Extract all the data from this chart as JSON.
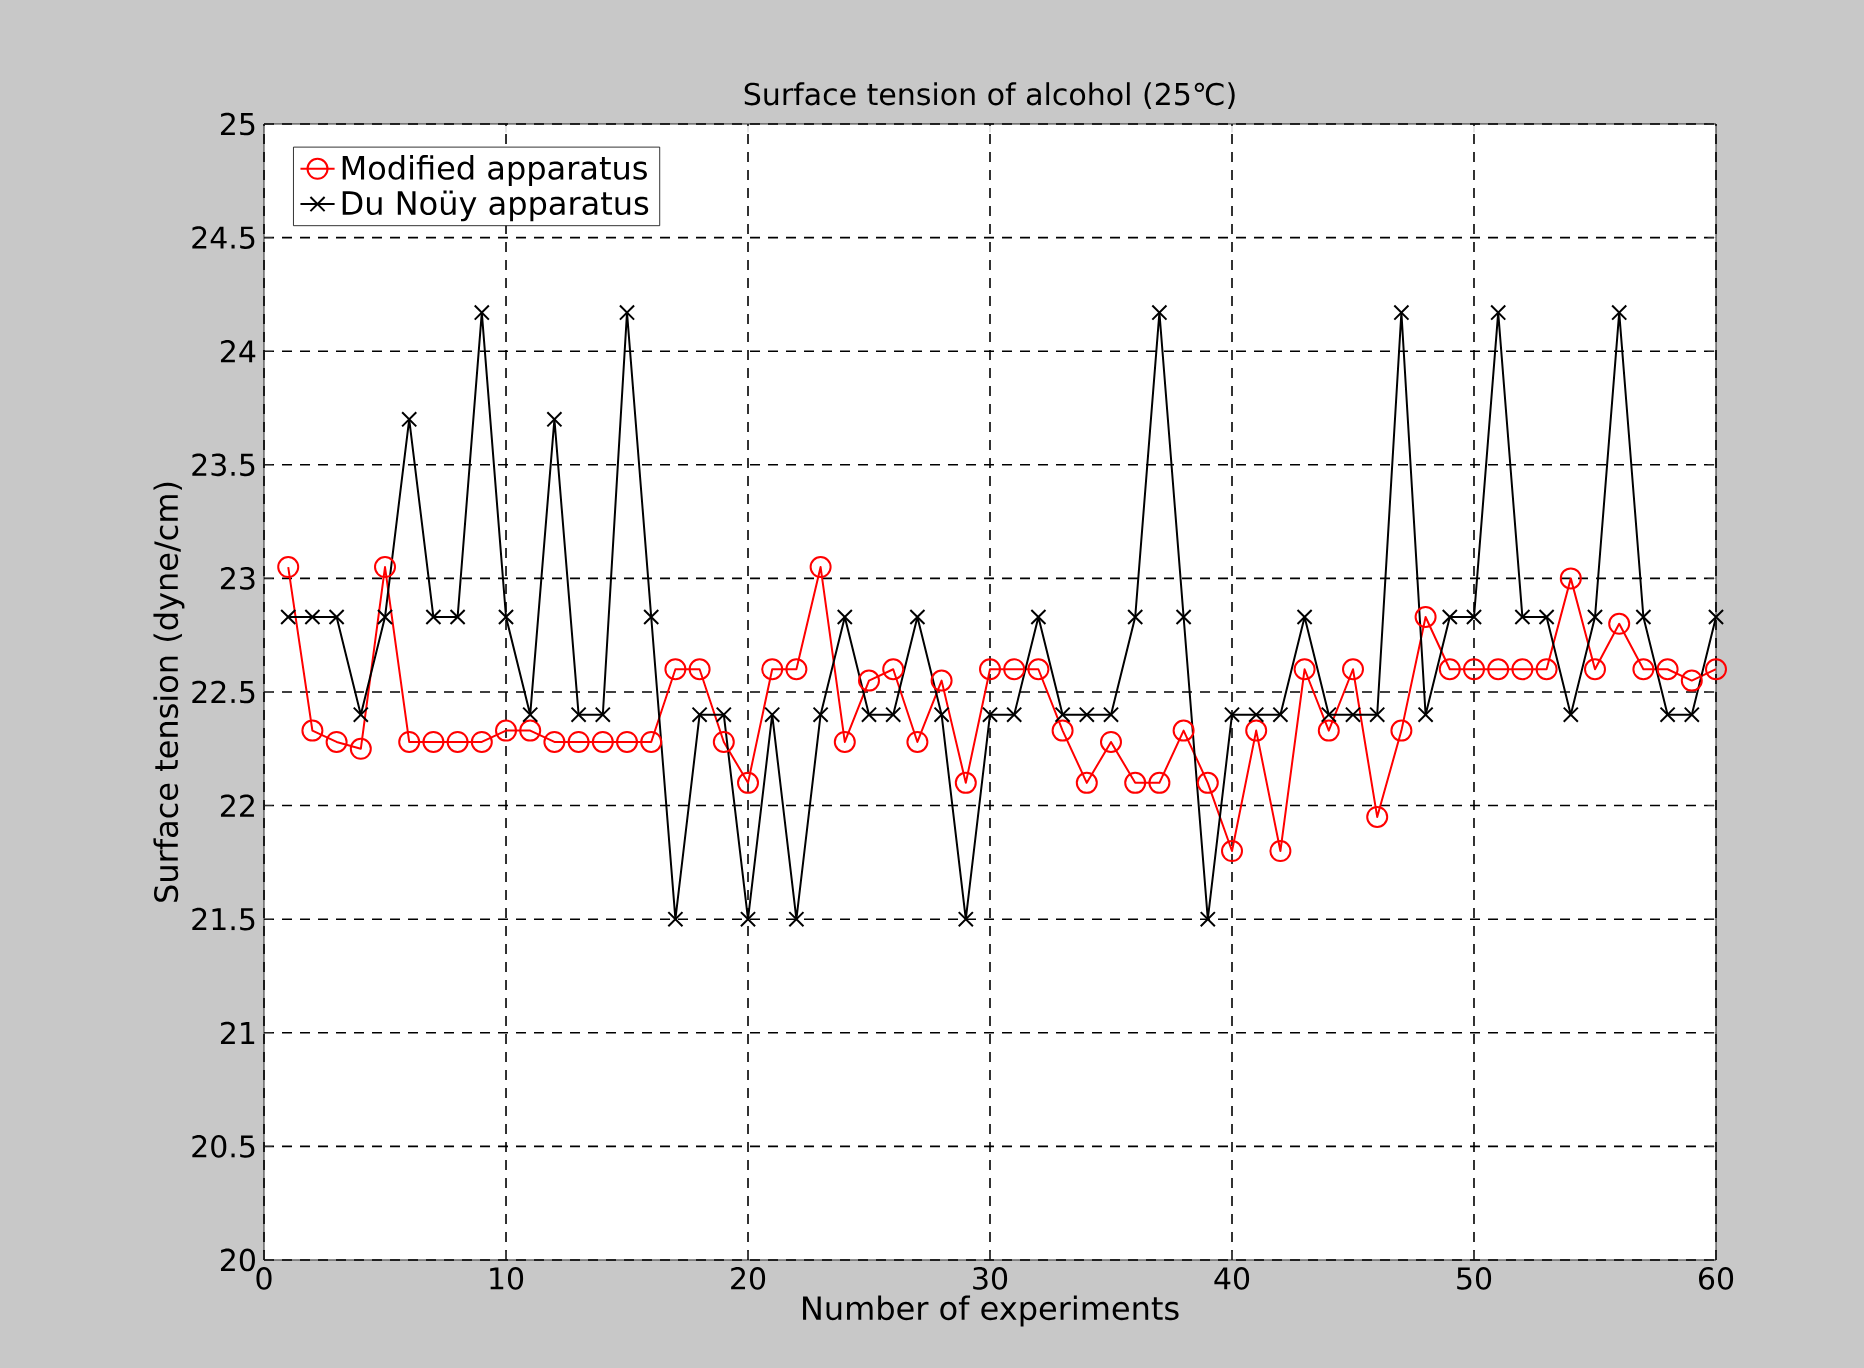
{
  "chart_data": {
    "type": "line",
    "title": "Surface tension of alcohol (25℃)",
    "xlabel": "Number of experiments",
    "ylabel": "Surface tension (dyne/cm)",
    "x": [
      1,
      2,
      3,
      4,
      5,
      6,
      7,
      8,
      9,
      10,
      11,
      12,
      13,
      14,
      15,
      16,
      17,
      18,
      19,
      20,
      21,
      22,
      23,
      24,
      25,
      26,
      27,
      28,
      29,
      30,
      31,
      32,
      33,
      34,
      35,
      36,
      37,
      38,
      39,
      40,
      41,
      42,
      43,
      44,
      45,
      46,
      47,
      48,
      49,
      50,
      51,
      52,
      53,
      54,
      55,
      56,
      57,
      58,
      59,
      60
    ],
    "series": [
      {
        "name": "Modified apparatus",
        "color": "#ff0000",
        "marker": "circle",
        "values": [
          23.05,
          22.33,
          22.28,
          22.25,
          23.05,
          22.28,
          22.28,
          22.28,
          22.28,
          22.33,
          22.33,
          22.28,
          22.28,
          22.28,
          22.28,
          22.28,
          22.6,
          22.6,
          22.28,
          22.1,
          22.6,
          22.6,
          23.05,
          22.28,
          22.55,
          22.6,
          22.28,
          22.55,
          22.1,
          22.6,
          22.6,
          22.6,
          22.33,
          22.1,
          22.28,
          22.1,
          22.1,
          22.33,
          22.1,
          21.8,
          22.33,
          21.8,
          22.6,
          22.33,
          22.6,
          21.95,
          22.33,
          22.83,
          22.6,
          22.6,
          22.6,
          22.6,
          22.6,
          23.0,
          22.6,
          22.8,
          22.6,
          22.6,
          22.55,
          22.6
        ]
      },
      {
        "name": "Du Noüy apparatus",
        "color": "#000000",
        "marker": "cross",
        "values": [
          22.83,
          22.83,
          22.83,
          22.4,
          22.83,
          23.7,
          22.83,
          22.83,
          24.17,
          22.83,
          22.4,
          23.7,
          22.4,
          22.4,
          24.17,
          22.83,
          21.5,
          22.4,
          22.4,
          21.5,
          22.4,
          21.5,
          22.4,
          22.83,
          22.4,
          22.4,
          22.83,
          22.4,
          21.5,
          22.4,
          22.4,
          22.83,
          22.4,
          22.4,
          22.4,
          22.83,
          24.17,
          22.83,
          21.5,
          22.4,
          22.4,
          22.4,
          22.83,
          22.4,
          22.4,
          22.4,
          24.17,
          22.4,
          22.83,
          22.83,
          24.17,
          22.83,
          22.83,
          22.4,
          22.83,
          24.17,
          22.83,
          22.4,
          22.4,
          22.83
        ]
      }
    ],
    "xlim": [
      0,
      60
    ],
    "xticks": [
      0,
      10,
      20,
      30,
      40,
      50,
      60
    ],
    "ylim": [
      20,
      25
    ],
    "yticks": [
      20,
      20.5,
      21,
      21.5,
      22,
      22.5,
      23,
      23.5,
      24,
      24.5,
      25
    ],
    "grid": true,
    "legend": "top left",
    "line_style": "solid"
  }
}
